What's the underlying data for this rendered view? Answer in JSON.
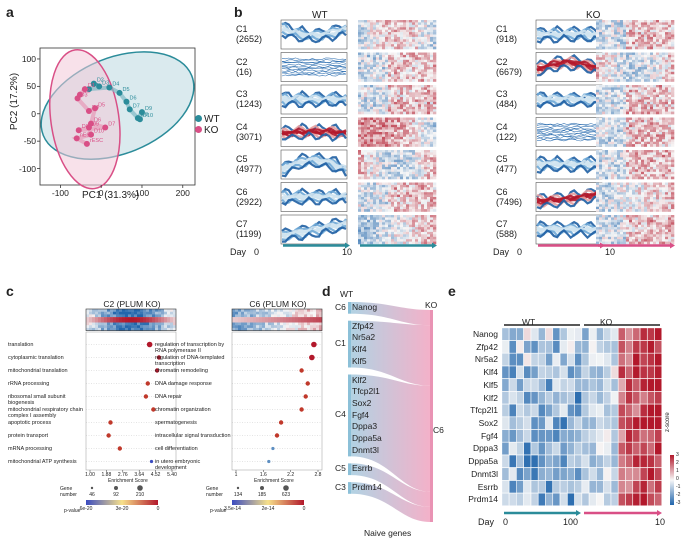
{
  "panel_labels": {
    "a": "a",
    "b": "b",
    "c": "c",
    "d": "d",
    "e": "e"
  },
  "panel_a": {
    "xlabel": "PC1 (31.3%)",
    "ylabel": "PC2 (17.2%)",
    "x_ticks": [
      "-100",
      "0",
      "100",
      "200"
    ],
    "y_ticks": [
      "100",
      "50",
      "0",
      "-50",
      "-100"
    ],
    "legend": [
      {
        "label": "WT",
        "color": "#2b8c9a"
      },
      {
        "label": "KO",
        "color": "#d94f86"
      }
    ],
    "point_labels_wt": [
      "D1",
      "D2",
      "D3",
      "D4",
      "D5",
      "D6",
      "D7",
      "D8",
      "D9",
      "D10"
    ],
    "point_labels_ko": [
      "D1",
      "D2",
      "D3",
      "D4",
      "D5",
      "D6",
      "D7",
      "D8",
      "D9",
      "D10",
      "nESC",
      "rESC"
    ],
    "chart_data": {
      "type": "scatter",
      "xlabel": "PC1 (31.3%)",
      "ylabel": "PC2 (17.2%)",
      "xlim": [
        -150,
        230
      ],
      "ylim": [
        -130,
        120
      ],
      "series": [
        {
          "name": "WT",
          "color": "#2b8c9a",
          "points": [
            {
              "label": "D2",
              "x": -18,
              "y": 55
            },
            {
              "label": "D3",
              "x": -5,
              "y": 50
            },
            {
              "label": "D1",
              "x": -30,
              "y": 45
            },
            {
              "label": "D4",
              "x": 20,
              "y": 48
            },
            {
              "label": "D5",
              "x": 45,
              "y": 38
            },
            {
              "label": "D6",
              "x": 62,
              "y": 22
            },
            {
              "label": "D7",
              "x": 70,
              "y": 8
            },
            {
              "label": "D8",
              "x": 90,
              "y": -8
            },
            {
              "label": "D9",
              "x": 100,
              "y": 3
            },
            {
              "label": "D10",
              "x": 95,
              "y": -10
            }
          ]
        },
        {
          "name": "KO",
          "color": "#d94f86",
          "points": [
            {
              "label": "D1",
              "x": -40,
              "y": 45
            },
            {
              "label": "D2",
              "x": -52,
              "y": 35
            },
            {
              "label": "D3",
              "x": -58,
              "y": 28
            },
            {
              "label": "D4",
              "x": -30,
              "y": 5
            },
            {
              "label": "D5",
              "x": -15,
              "y": 10
            },
            {
              "label": "D6",
              "x": -25,
              "y": -18
            },
            {
              "label": "D7",
              "x": 10,
              "y": -25
            },
            {
              "label": "D8",
              "x": -55,
              "y": -30
            },
            {
              "label": "D9",
              "x": -30,
              "y": -25
            },
            {
              "label": "D10",
              "x": -25,
              "y": -38
            },
            {
              "label": "nESC",
              "x": -60,
              "y": -45
            },
            {
              "label": "rESC",
              "x": -35,
              "y": -55
            }
          ]
        }
      ]
    }
  },
  "panel_b": {
    "wt_title": "WT",
    "ko_title": "KO",
    "day_label": "Day",
    "day_start": "0",
    "day_end": "10",
    "wt_clusters": [
      {
        "name": "C1",
        "count": "(2652)",
        "curve": "valley"
      },
      {
        "name": "C2",
        "count": "(16)",
        "curve": "noisy"
      },
      {
        "name": "C3",
        "count": "(1243)",
        "curve": "flat"
      },
      {
        "name": "C4",
        "count": "(3071)",
        "curve": "red_high"
      },
      {
        "name": "C5",
        "count": "(4977)",
        "curve": "hump"
      },
      {
        "name": "C6",
        "count": "(2922)",
        "curve": "flat"
      },
      {
        "name": "C7",
        "count": "(1199)",
        "curve": "rise"
      }
    ],
    "ko_clusters": [
      {
        "name": "C1",
        "count": "(918)",
        "curve": "flat"
      },
      {
        "name": "C2",
        "count": "(6679)",
        "curve": "red_hump"
      },
      {
        "name": "C3",
        "count": "(484)",
        "curve": "flat"
      },
      {
        "name": "C4",
        "count": "(122)",
        "curve": "noisy"
      },
      {
        "name": "C5",
        "count": "(477)",
        "curve": "flat"
      },
      {
        "name": "C6",
        "count": "(7496)",
        "curve": "red_rise"
      },
      {
        "name": "C7",
        "count": "(588)",
        "curve": "flat"
      }
    ]
  },
  "panel_c": {
    "left_title": "C2 (PLUM KO)",
    "right_title": "C6 (PLUM KO)",
    "chart_data": [
      {
        "type": "scatter",
        "title": "C2 (PLUM KO)",
        "xlabel": "Enrichment Score",
        "x_ticks": [
          "1.00",
          "1.88",
          "2.76",
          "3.64",
          "4.52",
          "5.40"
        ],
        "xlim": [
          1.0,
          5.4
        ],
        "size_legend_title": "Gene number",
        "size_legend": [
          "46",
          "92",
          "210"
        ],
        "color_legend_title": "p-value",
        "color_legend_ticks": [
          "6e-20",
          "3e-20",
          "0"
        ],
        "terms": [
          {
            "label": "translation",
            "x": 4.2,
            "size": 3,
            "color": "#b2182b"
          },
          {
            "label": "cytoplasmic translation",
            "x": 4.7,
            "size": 2,
            "color": "#b2182b"
          },
          {
            "label": "mitochondrial translation",
            "x": 4.6,
            "size": 2,
            "color": "#b2182b"
          },
          {
            "label": "rRNA processing",
            "x": 4.1,
            "size": 2,
            "color": "#c0392b"
          },
          {
            "label": "ribosomal small subunit biogenesis",
            "x": 4.0,
            "size": 2,
            "color": "#c0392b"
          },
          {
            "label": "mitochondrial respiratory chain complex I assembly",
            "x": 4.4,
            "size": 2,
            "color": "#c0392b"
          },
          {
            "label": "apoptotic process",
            "x": 2.1,
            "size": 2,
            "color": "#c0392b"
          },
          {
            "label": "protein transport",
            "x": 2.0,
            "size": 2,
            "color": "#c0392b"
          },
          {
            "label": "mRNA processing",
            "x": 2.6,
            "size": 2,
            "color": "#c0392b"
          },
          {
            "label": "mitochondrial ATP synthesis",
            "x": 4.3,
            "size": 1,
            "color": "#3b4cc0"
          }
        ]
      },
      {
        "type": "scatter",
        "title": "C6 (PLUM KO)",
        "xlabel": "Enrichment Score",
        "x_ticks": [
          "1",
          "1.6",
          "2.2",
          "2.8"
        ],
        "xlim": [
          1.0,
          3.0
        ],
        "size_legend_title": "Gene number",
        "size_legend": [
          "134",
          "185",
          "623"
        ],
        "color_legend_title": "p-value",
        "color_legend_ticks": [
          "3.5e-14",
          "2e-14",
          "0"
        ],
        "terms": [
          {
            "label": "regulation of transcription by RNA polymerase II",
            "x": 2.9,
            "size": 3,
            "color": "#b2182b"
          },
          {
            "label": "regulation of DNA-templated transcription",
            "x": 2.85,
            "size": 3,
            "color": "#b2182b"
          },
          {
            "label": "chromatin remodeling",
            "x": 2.6,
            "size": 2,
            "color": "#c0392b"
          },
          {
            "label": "DNA damage response",
            "x": 2.75,
            "size": 2,
            "color": "#c0392b"
          },
          {
            "label": "DNA repair",
            "x": 2.7,
            "size": 2,
            "color": "#c0392b"
          },
          {
            "label": "chromatin organization",
            "x": 2.6,
            "size": 2,
            "color": "#c0392b"
          },
          {
            "label": "spermatogenesis",
            "x": 2.1,
            "size": 2,
            "color": "#c0392b"
          },
          {
            "label": "intracellular signal transduction",
            "x": 2.0,
            "size": 2,
            "color": "#c0392b"
          },
          {
            "label": "cell differentiation",
            "x": 1.9,
            "size": 1,
            "color": "#5e8fc2"
          },
          {
            "label": "in utero embryonic development",
            "x": 1.8,
            "size": 1,
            "color": "#5e8fc2"
          }
        ]
      }
    ]
  },
  "panel_d": {
    "wt_label": "WT",
    "ko_label": "KO",
    "ko_cluster": "C6",
    "footer": "Naive genes",
    "groups": [
      {
        "cluster": "C6",
        "genes": [
          "Nanog"
        ]
      },
      {
        "cluster": "C1",
        "genes": [
          "Zfp42",
          "Nr5a2",
          "Klf4",
          "Klf5"
        ]
      },
      {
        "cluster": "C4",
        "genes": [
          "Klf2",
          "Tfcp2l1",
          "Sox2",
          "Fgf4",
          "Dppa3",
          "Dppa5a",
          "Dnmt3l"
        ]
      },
      {
        "cluster": "C5",
        "genes": [
          "Esrrb"
        ]
      },
      {
        "cluster": "C3",
        "genes": [
          "Prdm14"
        ]
      }
    ]
  },
  "panel_e": {
    "wt_label": "WT",
    "ko_label": "KO",
    "day_label": "Day",
    "day_start_wt": "0",
    "day_end_wt": "10",
    "day_start_ko": "0",
    "day_end_ko": "10",
    "colorbar_title": "z-score",
    "colorbar_ticks": [
      "3",
      "2",
      "1",
      "0",
      "-1",
      "-2",
      "-3"
    ],
    "genes": [
      "Nanog",
      "Zfp42",
      "Nr5a2",
      "Klf4",
      "Klf5",
      "Klf2",
      "Tfcp2l1",
      "Sox2",
      "Fgf4",
      "Dppa3",
      "Dppa5a",
      "Dnmt3l",
      "Esrrb",
      "Prdm14"
    ]
  },
  "colors": {
    "wt": "#2b8c9a",
    "ko": "#d94f86",
    "blue": "#2166ac",
    "red": "#b2182b"
  }
}
